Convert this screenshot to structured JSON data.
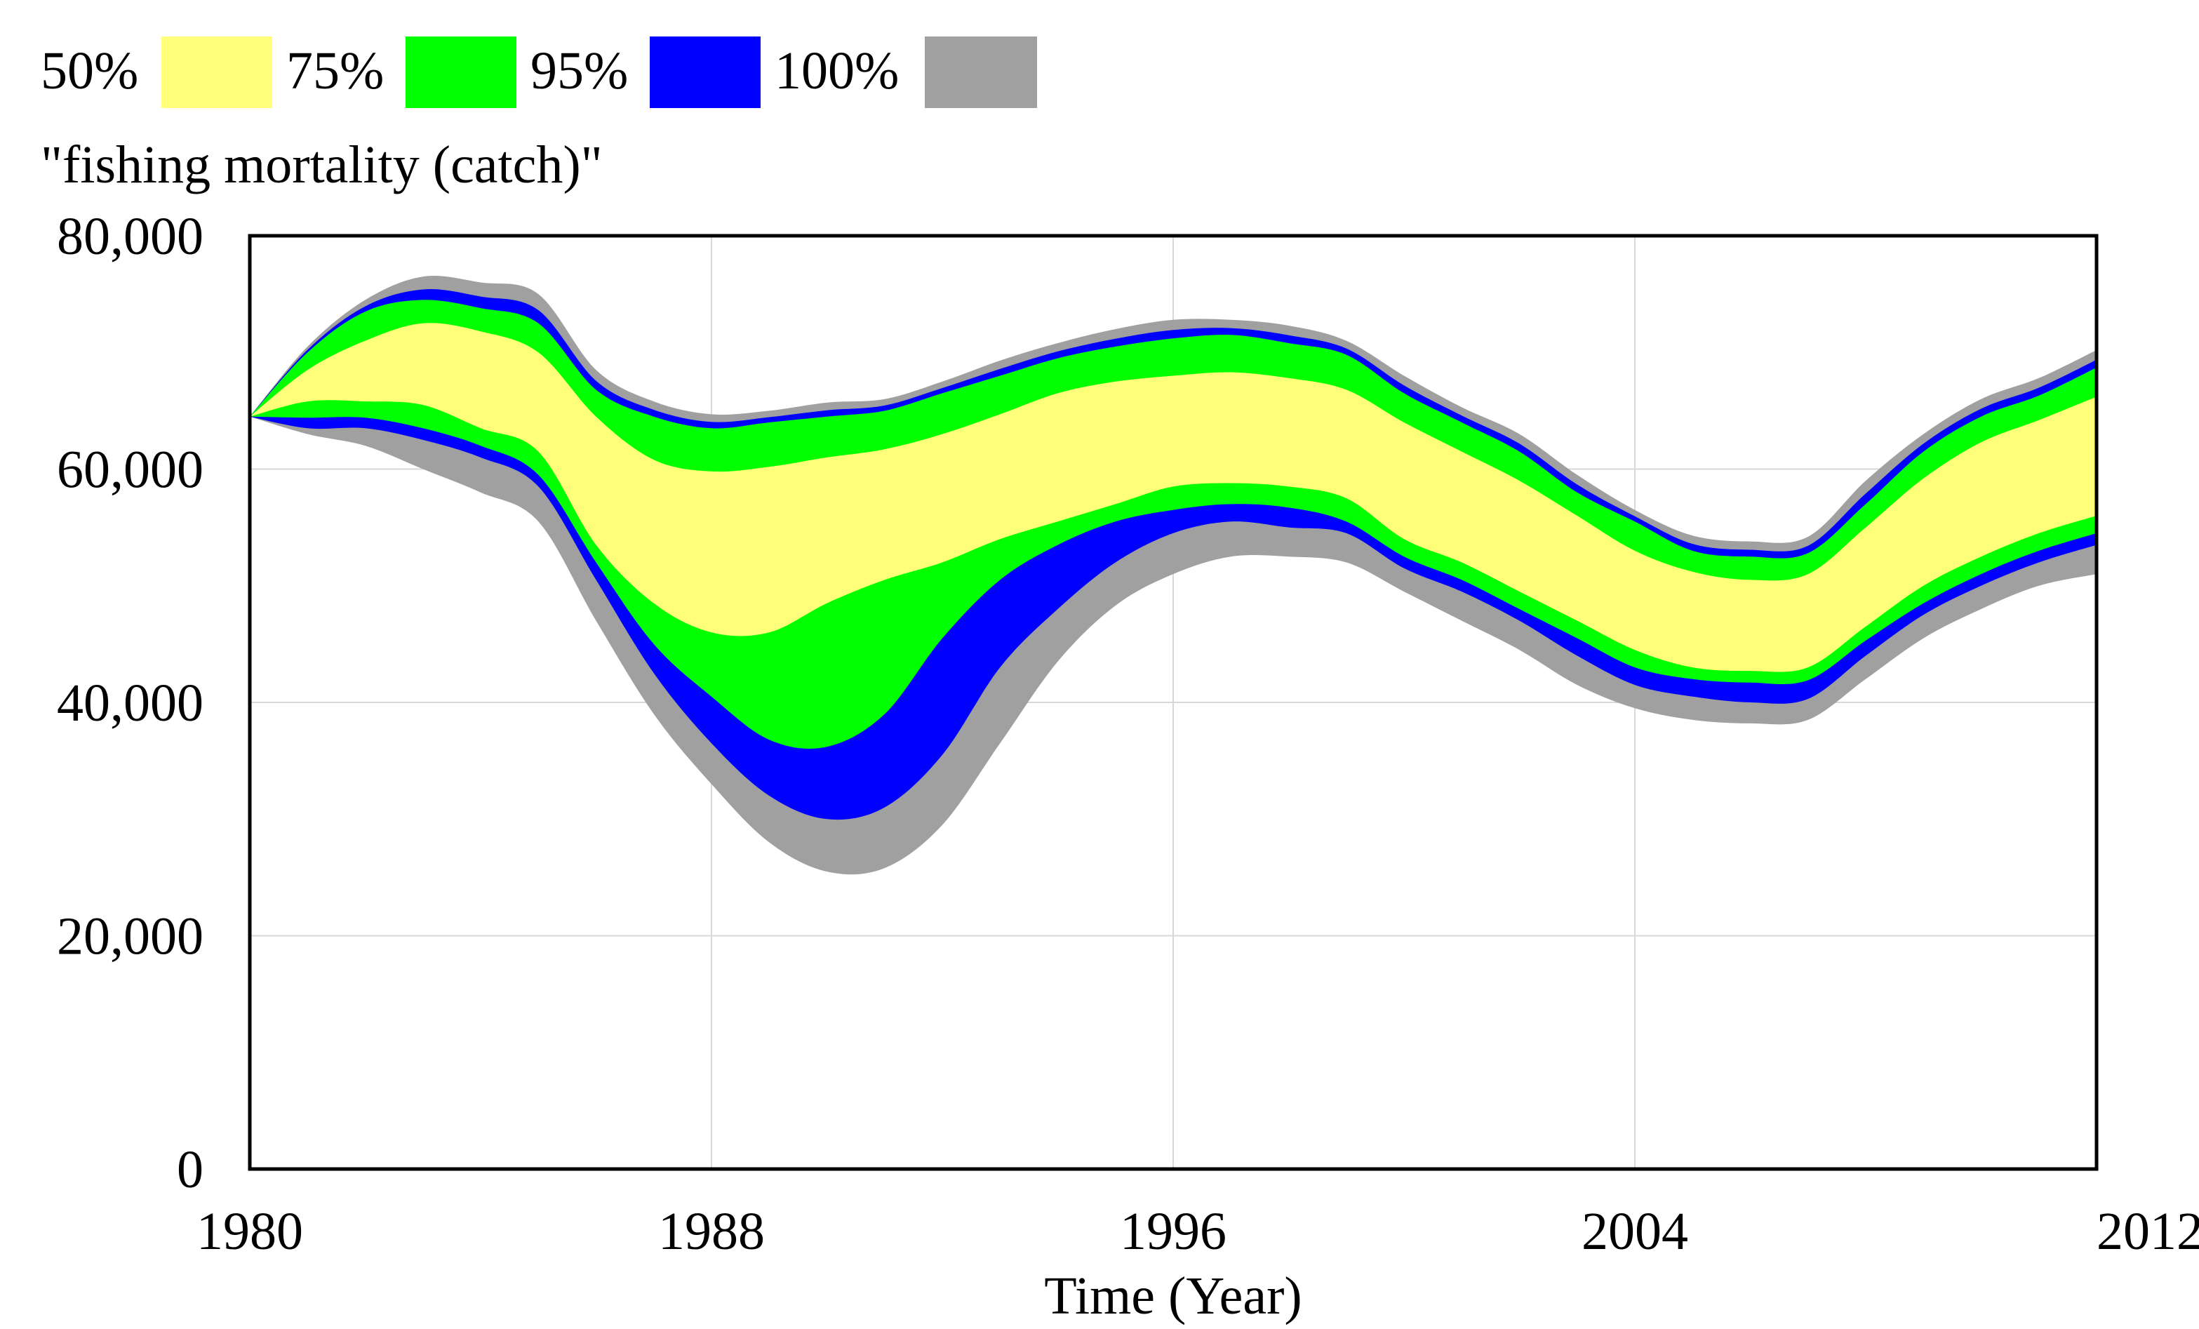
{
  "chart_data": {
    "type": "area",
    "title": "\"fishing mortality (catch)\"",
    "xlabel": "Time (Year)",
    "ylabel": "",
    "xlim": [
      1980,
      2012
    ],
    "ylim": [
      0,
      80000
    ],
    "grid": true,
    "legend_position": "top-left",
    "x_ticks": [
      1980,
      1988,
      1996,
      2004,
      2012
    ],
    "x_tick_labels": [
      "1980",
      "1988",
      "1996",
      "2004",
      "2012"
    ],
    "y_ticks": [
      0,
      20000,
      40000,
      60000,
      80000
    ],
    "y_tick_labels": [
      "0",
      "20,000",
      "40,000",
      "60,000",
      "80,000"
    ],
    "x": [
      1980,
      1981,
      1982,
      1983,
      1984,
      1985,
      1986,
      1987,
      1988,
      1989,
      1990,
      1991,
      1992,
      1993,
      1994,
      1995,
      1996,
      1997,
      1998,
      1999,
      2000,
      2001,
      2002,
      2003,
      2004,
      2005,
      2006,
      2007,
      2008,
      2009,
      2010,
      2011,
      2012
    ],
    "bands": [
      {
        "name": "100%",
        "color": "#A0A0A0",
        "lower": [
          64500,
          63000,
          62000,
          60000,
          58000,
          55500,
          47000,
          39000,
          33000,
          28000,
          25500,
          25800,
          29500,
          36500,
          43500,
          48300,
          51000,
          52500,
          52500,
          52000,
          49500,
          47000,
          44500,
          41500,
          39500,
          38500,
          38200,
          38500,
          42000,
          45500,
          48000,
          50000,
          51000
        ],
        "upper": [
          64500,
          70500,
          74500,
          76500,
          76000,
          75000,
          68500,
          65800,
          64700,
          65000,
          65700,
          66000,
          67500,
          69300,
          70800,
          72000,
          72800,
          72800,
          72300,
          71000,
          68000,
          65300,
          63000,
          59500,
          56500,
          54300,
          53800,
          54200,
          59000,
          63000,
          66000,
          67800,
          70200
        ]
      },
      {
        "name": "95%",
        "color": "#0000FF",
        "lower": [
          64500,
          63500,
          63500,
          62500,
          61000,
          58500,
          50500,
          42500,
          36500,
          32000,
          30000,
          31000,
          35500,
          43000,
          48000,
          52000,
          54500,
          55500,
          55000,
          54500,
          51500,
          49500,
          47000,
          44000,
          41500,
          40500,
          40000,
          40300,
          44000,
          47500,
          50000,
          52000,
          53500
        ]
      },
      {
        "name": "75%",
        "color": "#00FF00",
        "lower": [
          64500,
          64400,
          64400,
          63500,
          62000,
          59500,
          52000,
          45000,
          40500,
          36800,
          36200,
          39000,
          45500,
          50500,
          53500,
          55500,
          56500,
          57000,
          56700,
          55500,
          52500,
          50500,
          48000,
          45500,
          43000,
          42000,
          41700,
          41900,
          45300,
          48500,
          51000,
          53000,
          54500
        ],
        "upper": [
          64500,
          70000,
          73500,
          74500,
          73800,
          72500,
          66800,
          64500,
          63500,
          64000,
          64500,
          65000,
          66500,
          68000,
          69500,
          70500,
          71200,
          71500,
          70800,
          69800,
          66500,
          64000,
          61500,
          58000,
          55500,
          53000,
          52500,
          52800,
          57000,
          61500,
          64500,
          66300,
          68700
        ]
      },
      {
        "name": "50%",
        "color": "#FFFF7A",
        "lower": [
          64500,
          65800,
          65800,
          65500,
          63500,
          61500,
          53500,
          48500,
          46000,
          46000,
          48500,
          50500,
          52000,
          54000,
          55500,
          57000,
          58500,
          58800,
          58500,
          57500,
          54000,
          52000,
          49500,
          47000,
          44500,
          43000,
          42700,
          43000,
          46500,
          50000,
          52500,
          54500,
          56000
        ],
        "upper": [
          64500,
          68500,
          71000,
          72500,
          71800,
          70000,
          64500,
          60800,
          59800,
          60200,
          61000,
          61700,
          63000,
          64700,
          66500,
          67500,
          68000,
          68300,
          67800,
          66800,
          64000,
          61500,
          59000,
          56000,
          53000,
          51200,
          50500,
          51000,
          55000,
          59200,
          62300,
          64200,
          66200
        ]
      }
    ],
    "legend": [
      {
        "label": "50%",
        "color": "#FFFF7A"
      },
      {
        "label": "75%",
        "color": "#00FF00"
      },
      {
        "label": "95%",
        "color": "#0000FF"
      },
      {
        "label": "100%",
        "color": "#A0A0A0"
      }
    ]
  }
}
